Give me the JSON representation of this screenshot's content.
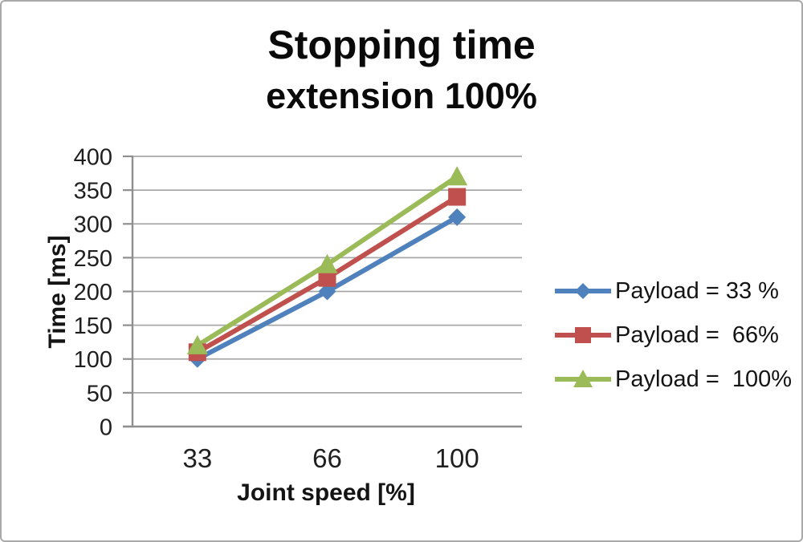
{
  "title": {
    "line1": "Stopping time",
    "line2": "extension 100%"
  },
  "chart_data": {
    "type": "line",
    "title": "Stopping time extension 100%",
    "categories": [
      "33",
      "66",
      "100"
    ],
    "series": [
      {
        "name": "Payload = 33 %",
        "color": "#4f81bd",
        "marker": "diamond",
        "values": [
          100,
          200,
          310
        ]
      },
      {
        "name": "Payload =  66%",
        "color": "#c0504d",
        "marker": "square",
        "values": [
          110,
          220,
          340
        ]
      },
      {
        "name": "Payload =  100%",
        "color": "#9bbb59",
        "marker": "triangle",
        "values": [
          120,
          240,
          370
        ]
      }
    ],
    "xlabel": "Joint speed [%]",
    "ylabel": "Time [ms]",
    "ylim": [
      0,
      400
    ],
    "ytick_step": 50,
    "grid": true,
    "legend_position": "right"
  },
  "colors": {
    "grid": "#a8a8a8",
    "axis": "#8f8f8f",
    "text": "#1f1f1f",
    "frame_border": "#a9a9a9"
  }
}
